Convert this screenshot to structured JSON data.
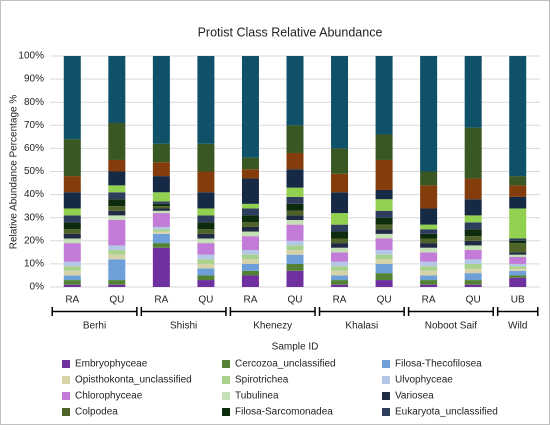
{
  "chart_data": {
    "type": "stacked-bar",
    "title": "Protist Class Relative Abundance",
    "x_label": "Sample ID",
    "y_label": "Relative Abundance Percentage %",
    "groups": [
      {
        "label": "Berhi",
        "categories": [
          "RA",
          "QU"
        ]
      },
      {
        "label": "Shishi",
        "categories": [
          "RA",
          "QU"
        ]
      },
      {
        "label": "Khenezy",
        "categories": [
          "RA",
          "QU"
        ]
      },
      {
        "label": "Khalasi",
        "categories": [
          "RA",
          "QU"
        ]
      },
      {
        "label": "Noboot Saif",
        "categories": [
          "RA",
          "QU"
        ]
      },
      {
        "label": "Wild",
        "categories": [
          "UB"
        ]
      }
    ],
    "ylim": [
      0,
      100
    ],
    "yticks": [
      {
        "value": 0,
        "label": "0%"
      },
      {
        "value": 10,
        "label": "10%"
      },
      {
        "value": 20,
        "label": "20%"
      },
      {
        "value": 30,
        "label": "30%"
      },
      {
        "value": 40,
        "label": "40%"
      },
      {
        "value": 50,
        "label": "50%"
      },
      {
        "value": 60,
        "label": "60%"
      },
      {
        "value": 70,
        "label": "70%"
      },
      {
        "value": 80,
        "label": "80%"
      },
      {
        "value": 90,
        "label": "90%"
      },
      {
        "value": 100,
        "label": "100%"
      }
    ],
    "grid": true,
    "series": [
      {
        "name": "Embryophyceae",
        "color": "#7030a0",
        "values": [
          1,
          1,
          17,
          3,
          5,
          7,
          1,
          3,
          1,
          1,
          4
        ]
      },
      {
        "name": "Cercozoa_unclassified",
        "color": "#548235",
        "values": [
          2,
          2,
          2,
          2,
          2,
          3,
          2,
          3,
          2,
          2,
          1
        ]
      },
      {
        "name": "Filosa-Thecofilosea",
        "color": "#6f9fd8",
        "values": [
          2,
          9,
          4,
          3,
          3,
          4,
          2,
          4,
          2,
          3,
          2
        ]
      },
      {
        "name": "Opisthokonta_unclassified",
        "color": "#d6d3a8",
        "values": [
          2,
          2,
          1,
          2,
          2,
          2,
          2,
          2,
          2,
          2,
          1
        ]
      },
      {
        "name": "Spirotrichea",
        "color": "#a9d18e",
        "values": [
          2,
          2,
          1,
          2,
          2,
          2,
          2,
          2,
          2,
          2,
          1
        ]
      },
      {
        "name": "Ulvophyceae",
        "color": "#b4c7e7",
        "values": [
          2,
          2,
          1,
          2,
          2,
          2,
          2,
          2,
          2,
          2,
          1
        ]
      },
      {
        "name": "Chlorophyceae",
        "color": "#c27bd6",
        "values": [
          8,
          11,
          6,
          5,
          6,
          7,
          4,
          5,
          4,
          4,
          3
        ]
      },
      {
        "name": "Tubulinea",
        "color": "#c5e0b4",
        "values": [
          2,
          2,
          1,
          2,
          2,
          2,
          2,
          2,
          2,
          2,
          1
        ]
      },
      {
        "name": "Variosea",
        "color": "#1f2a44",
        "values": [
          2,
          2,
          1,
          2,
          2,
          2,
          2,
          2,
          2,
          2,
          1
        ]
      },
      {
        "name": "Colpodea",
        "color": "#4f6228",
        "values": [
          2,
          2,
          1,
          2,
          2,
          2,
          2,
          2,
          2,
          2,
          4
        ]
      },
      {
        "name": "Filosa-Sarcomonadea",
        "color": "#0d2b0d",
        "values": [
          3,
          3,
          1,
          3,
          3,
          3,
          3,
          3,
          2,
          3,
          1
        ]
      },
      {
        "name": "Eukaryota_unclassified",
        "color": "#2f3d5c",
        "values": [
          3,
          3,
          1,
          3,
          3,
          3,
          3,
          3,
          2,
          3,
          1
        ]
      },
      {
        "color": "#92d050",
        "values": [
          3,
          3,
          4,
          3,
          2,
          4,
          5,
          5,
          2,
          3,
          13
        ]
      },
      {
        "color": "#172a45",
        "values": [
          7,
          6,
          7,
          7,
          11,
          8,
          9,
          4,
          7,
          7,
          5
        ]
      },
      {
        "color": "#843c0c",
        "values": [
          7,
          5,
          6,
          9,
          4,
          7,
          8,
          13,
          10,
          9,
          5
        ]
      },
      {
        "color": "#385723",
        "values": [
          16,
          16,
          8,
          12,
          5,
          12,
          11,
          11,
          6,
          22,
          4
        ]
      },
      {
        "color": "#0e5168",
        "values": [
          36,
          29,
          38,
          38,
          44,
          30,
          40,
          34,
          50,
          31,
          52
        ]
      }
    ]
  }
}
